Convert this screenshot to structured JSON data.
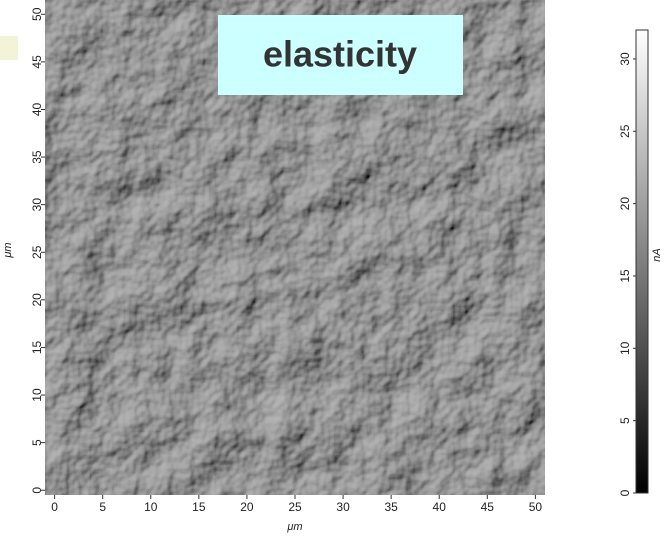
{
  "chart_data": {
    "type": "image",
    "annotation": "elasticity",
    "x_label": "μm",
    "y_label": "μm",
    "xlim": [
      -1,
      51
    ],
    "xticks": [
      0,
      5,
      10,
      15,
      20,
      25,
      30,
      35,
      40,
      45,
      50
    ],
    "ylim": [
      -0.5,
      51.5
    ],
    "yticks": [
      0,
      5,
      10,
      15,
      20,
      25,
      30,
      35,
      40,
      45,
      50
    ],
    "colorbar": {
      "label": "nA",
      "lim": [
        0,
        32
      ],
      "ticks": [
        0,
        5,
        10,
        15,
        20,
        25,
        30
      ],
      "colors": [
        "#000000",
        "#ffffff"
      ]
    }
  }
}
